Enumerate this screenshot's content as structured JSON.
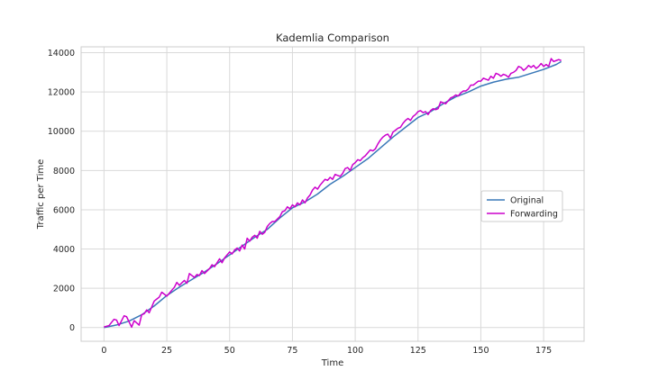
{
  "chart_data": {
    "type": "line",
    "title": "Kademlia Comparison",
    "xlabel": "Time",
    "ylabel": "Traffic per Time",
    "xlim": [
      -9.1,
      191.1
    ],
    "ylim": [
      -700,
      14300
    ],
    "xticks": [
      0,
      25,
      50,
      75,
      100,
      125,
      150,
      175
    ],
    "yticks": [
      0,
      2000,
      4000,
      6000,
      8000,
      10000,
      12000,
      14000
    ],
    "grid": true,
    "legend_position": "center-right",
    "series": [
      {
        "name": "Original",
        "color": "#3a78b8",
        "x": [
          0,
          5,
          10,
          15,
          20,
          25,
          30,
          35,
          40,
          45,
          50,
          55,
          60,
          65,
          70,
          75,
          80,
          85,
          90,
          95,
          100,
          105,
          110,
          115,
          120,
          125,
          130,
          135,
          140,
          145,
          150,
          155,
          160,
          165,
          170,
          175,
          180,
          182
        ],
        "y": [
          0,
          130,
          330,
          650,
          1100,
          1630,
          2060,
          2450,
          2830,
          3250,
          3700,
          4150,
          4600,
          5000,
          5580,
          6100,
          6400,
          6800,
          7300,
          7700,
          8150,
          8600,
          9150,
          9700,
          10200,
          10700,
          11000,
          11400,
          11750,
          12000,
          12300,
          12500,
          12650,
          12750,
          12950,
          13150,
          13400,
          13550
        ]
      },
      {
        "name": "Forwarding",
        "color": "#cc00cc",
        "x": [
          0,
          2,
          4,
          5,
          6,
          8,
          9,
          11,
          12,
          14,
          15,
          16,
          17,
          18,
          20,
          21,
          22,
          23,
          25,
          26,
          27,
          28,
          29,
          30,
          31,
          32,
          33,
          34,
          36,
          37,
          38,
          39,
          40,
          42,
          43,
          44,
          46,
          47,
          48,
          50,
          51,
          52,
          53,
          54,
          55,
          56,
          57,
          58,
          59,
          60,
          61,
          62,
          63,
          64,
          65,
          66,
          67,
          68,
          70,
          71,
          72,
          73,
          74,
          75,
          76,
          77,
          78,
          79,
          80,
          81,
          82,
          83,
          84,
          85,
          86,
          87,
          88,
          89,
          90,
          91,
          92,
          93,
          94,
          95,
          96,
          97,
          98,
          99,
          100,
          101,
          102,
          103,
          104,
          105,
          106,
          107,
          108,
          109,
          110,
          111,
          112,
          113,
          114,
          115,
          116,
          117,
          118,
          119,
          120,
          121,
          122,
          123,
          124,
          125,
          126,
          127,
          128,
          129,
          130,
          131,
          132,
          133,
          134,
          135,
          136,
          137,
          138,
          139,
          140,
          141,
          142,
          143,
          144,
          145,
          146,
          147,
          148,
          149,
          150,
          151,
          152,
          153,
          154,
          155,
          156,
          157,
          158,
          159,
          160,
          161,
          162,
          163,
          164,
          165,
          166,
          167,
          168,
          169,
          170,
          171,
          172,
          173,
          174,
          175,
          176,
          177,
          178,
          179,
          180,
          181,
          182
        ],
        "y": [
          30,
          100,
          420,
          380,
          100,
          600,
          550,
          20,
          350,
          120,
          650,
          700,
          900,
          750,
          1350,
          1450,
          1550,
          1800,
          1600,
          1750,
          1900,
          2050,
          2300,
          2150,
          2280,
          2400,
          2250,
          2750,
          2550,
          2700,
          2650,
          2900,
          2750,
          3000,
          3200,
          3100,
          3500,
          3300,
          3550,
          3850,
          3750,
          3950,
          4050,
          3900,
          4200,
          4000,
          4550,
          4400,
          4600,
          4700,
          4550,
          4900,
          4750,
          4850,
          5150,
          5300,
          5400,
          5400,
          5650,
          5900,
          5950,
          6150,
          6050,
          6250,
          6150,
          6350,
          6250,
          6500,
          6350,
          6600,
          6750,
          7000,
          7150,
          7050,
          7250,
          7400,
          7550,
          7500,
          7650,
          7550,
          7800,
          7750,
          7700,
          7850,
          8100,
          8150,
          8000,
          8300,
          8400,
          8550,
          8500,
          8650,
          8750,
          8900,
          9050,
          9000,
          9100,
          9350,
          9550,
          9700,
          9800,
          9850,
          9650,
          9950,
          10050,
          10150,
          10200,
          10400,
          10550,
          10650,
          10550,
          10750,
          10850,
          11000,
          11050,
          10950,
          11000,
          10850,
          11050,
          11150,
          11100,
          11150,
          11500,
          11450,
          11400,
          11550,
          11700,
          11750,
          11850,
          11800,
          11950,
          12050,
          12050,
          12150,
          12350,
          12350,
          12450,
          12550,
          12550,
          12700,
          12650,
          12600,
          12800,
          12700,
          12950,
          12900,
          12800,
          12900,
          12850,
          12750,
          12950,
          13000,
          13100,
          13300,
          13250,
          13100,
          13200,
          13350,
          13250,
          13350,
          13200,
          13300,
          13450,
          13300,
          13400,
          13300,
          13700,
          13550,
          13600,
          13650,
          13600
        ]
      }
    ]
  }
}
